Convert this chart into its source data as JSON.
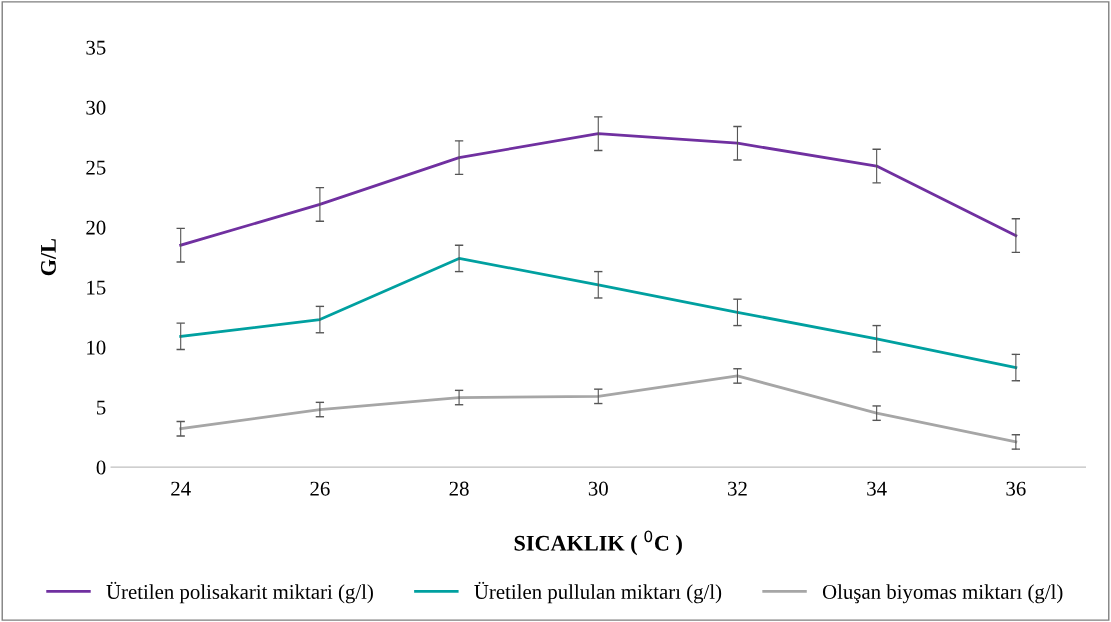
{
  "chart_data": {
    "type": "line",
    "xlabel": "SICAKLIK ( $^{0}$C )",
    "ylabel": "G/L",
    "categories": [
      "24",
      "26",
      "28",
      "30",
      "32",
      "34",
      "36"
    ],
    "series": [
      {
        "name": "Üretilen polisakarit miktari (g/l)",
        "color": "#7030a0",
        "values": [
          18.5,
          21.9,
          25.8,
          27.8,
          27.0,
          25.1,
          19.3
        ],
        "errors": [
          1.4,
          1.4,
          1.4,
          1.4,
          1.4,
          1.4,
          1.4
        ]
      },
      {
        "name": "Üretilen pullulan miktarı (g/l)",
        "color": "#00a0a0",
        "values": [
          10.9,
          12.3,
          17.4,
          15.2,
          12.9,
          10.7,
          8.3
        ],
        "errors": [
          1.1,
          1.1,
          1.1,
          1.1,
          1.1,
          1.1,
          1.1
        ]
      },
      {
        "name": "Oluşan biyomas miktarı (g/l)",
        "color": "#a6a6a6",
        "values": [
          3.2,
          4.8,
          5.8,
          5.9,
          7.6,
          4.5,
          2.1
        ],
        "errors": [
          0.6,
          0.6,
          0.6,
          0.6,
          0.6,
          0.6,
          0.6
        ]
      }
    ],
    "ylim": [
      0,
      35
    ],
    "yticks": [
      0,
      5,
      10,
      15,
      20,
      25,
      30,
      35
    ],
    "grid": false,
    "legend": "bottom",
    "marker": "none",
    "line_style": "solid"
  }
}
